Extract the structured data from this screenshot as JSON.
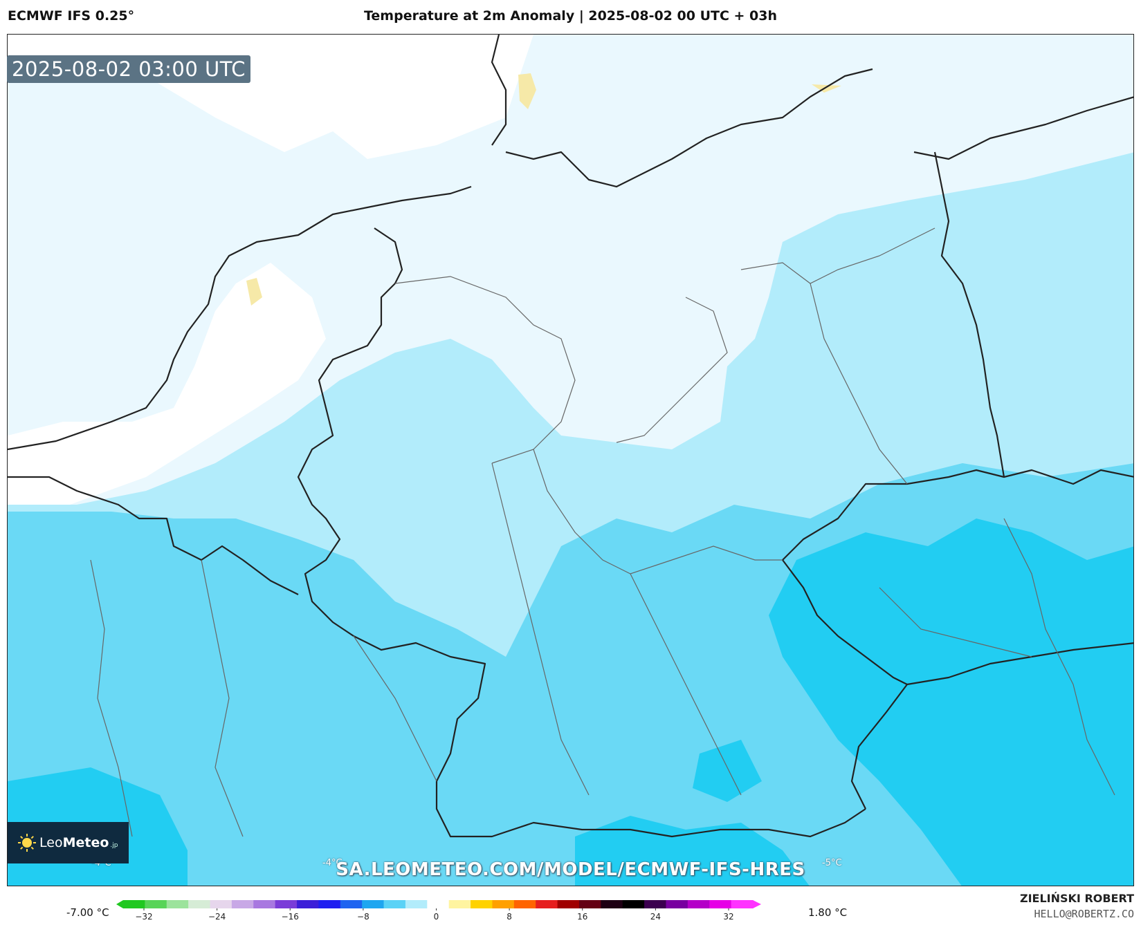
{
  "header": {
    "model": "ECMWF IFS 0.25°",
    "title": "Temperature at 2m Anomaly | 2025-08-02 00 UTC + 03h"
  },
  "map": {
    "valid_time": "2025-08-02 03:00 UTC",
    "watermark": "SA.LEOMETEO.COM/MODEL/ECMWF-IFS-HRES",
    "region_labels": [
      "-4°C",
      "-4°C",
      "-5°C"
    ],
    "colors": {
      "base": "#6ad9f5",
      "light": "#b2ecfb",
      "pale": "#eaf8fe",
      "white": "#ffffff",
      "deep": "#22cdf2",
      "warm": "#f6e9a8",
      "border": "#222222",
      "admin": "#666666"
    }
  },
  "logo": {
    "brand_light": "Leo",
    "brand_bold": "Meteo",
    "suffix": ".jp"
  },
  "colorbar": {
    "min_label": "-7.00 °C",
    "max_label": "1.80 °C",
    "ticks": [
      "−32",
      "−24",
      "−16",
      "−8",
      "0",
      "8",
      "16",
      "24",
      "32"
    ],
    "colors": [
      "#20c820",
      "#58d458",
      "#9ce39c",
      "#d6ecd6",
      "#e6d6ec",
      "#c8a8e6",
      "#a878e0",
      "#7a3cd8",
      "#3c1ed8",
      "#1e1ef0",
      "#1e64f0",
      "#1ea6f0",
      "#5ad2f6",
      "#b2ecfb",
      "#ffffff",
      "#fff4a0",
      "#ffd200",
      "#ffa000",
      "#ff6400",
      "#e61e1e",
      "#a00000",
      "#640014",
      "#1e0014",
      "#000000",
      "#3c0050",
      "#7800a0",
      "#b400c8",
      "#e600e6",
      "#ff32ff"
    ]
  },
  "credit": {
    "name": "ZIELIŃSKI ROBERT",
    "email": "HELLO@ROBERTZ.CO"
  }
}
